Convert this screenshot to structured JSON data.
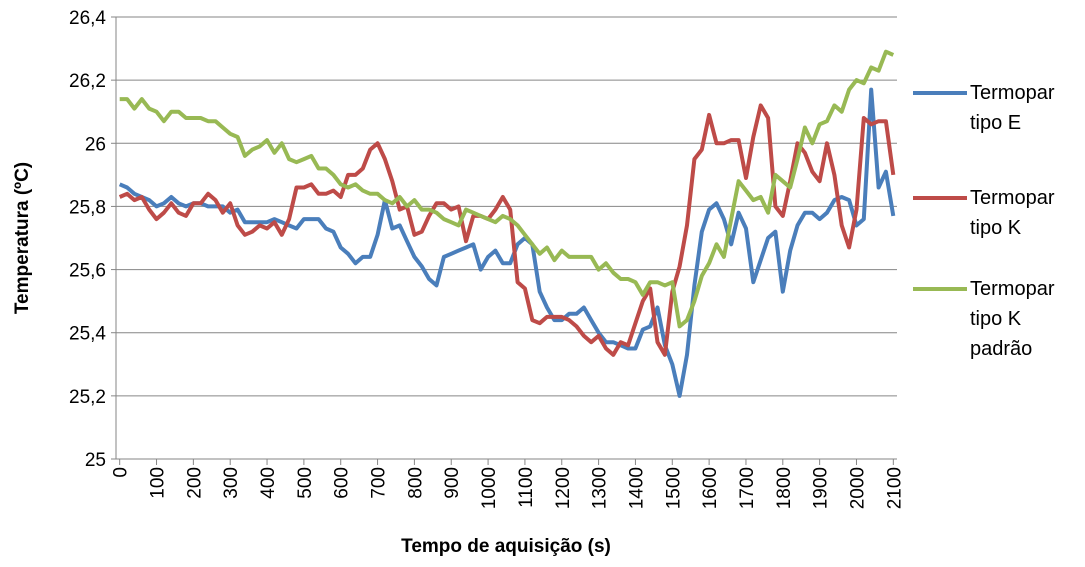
{
  "chart_data": {
    "type": "line",
    "y_label": "Temperatura (ºC)",
    "x_label": "Tempo de aquisição (s)",
    "x": [
      0,
      20,
      40,
      60,
      80,
      100,
      120,
      140,
      160,
      180,
      200,
      220,
      240,
      260,
      280,
      300,
      320,
      340,
      360,
      380,
      400,
      420,
      440,
      460,
      480,
      500,
      520,
      540,
      560,
      580,
      600,
      620,
      640,
      660,
      680,
      700,
      720,
      740,
      760,
      780,
      800,
      820,
      840,
      860,
      880,
      900,
      920,
      940,
      960,
      980,
      1000,
      1020,
      1040,
      1060,
      1080,
      1100,
      1120,
      1140,
      1160,
      1180,
      1200,
      1220,
      1240,
      1260,
      1280,
      1300,
      1320,
      1340,
      1360,
      1380,
      1400,
      1420,
      1440,
      1460,
      1480,
      1500,
      1520,
      1540,
      1560,
      1580,
      1600,
      1620,
      1640,
      1660,
      1680,
      1700,
      1720,
      1740,
      1760,
      1780,
      1800,
      1820,
      1840,
      1860,
      1880,
      1900,
      1920,
      1940,
      1960,
      1980,
      2000,
      2020,
      2040,
      2060,
      2080,
      2100
    ],
    "series": [
      {
        "name": "Termopar tipo E",
        "color": "#4a7ebb",
        "values": [
          25.87,
          25.86,
          25.84,
          25.83,
          25.82,
          25.8,
          25.81,
          25.83,
          25.81,
          25.8,
          25.81,
          25.81,
          25.8,
          25.8,
          25.8,
          25.78,
          25.79,
          25.75,
          25.75,
          25.75,
          25.75,
          25.76,
          25.75,
          25.74,
          25.73,
          25.76,
          25.76,
          25.76,
          25.73,
          25.72,
          25.67,
          25.65,
          25.62,
          25.64,
          25.64,
          25.71,
          25.82,
          25.73,
          25.74,
          25.69,
          25.64,
          25.61,
          25.57,
          25.55,
          25.64,
          25.65,
          25.66,
          25.67,
          25.68,
          25.6,
          25.64,
          25.66,
          25.62,
          25.62,
          25.68,
          25.7,
          25.68,
          25.53,
          25.48,
          25.44,
          25.44,
          25.46,
          25.46,
          25.48,
          25.44,
          25.4,
          25.37,
          25.37,
          25.36,
          25.35,
          25.35,
          25.41,
          25.42,
          25.48,
          25.36,
          25.3,
          25.2,
          25.33,
          25.55,
          25.72,
          25.79,
          25.81,
          25.76,
          25.68,
          25.78,
          25.73,
          25.56,
          25.63,
          25.7,
          25.72,
          25.53,
          25.66,
          25.74,
          25.78,
          25.78,
          25.76,
          25.78,
          25.82,
          25.83,
          25.82,
          25.74,
          25.76,
          26.17,
          25.86,
          25.91,
          25.77
        ]
      },
      {
        "name": "Termopar tipo K",
        "color": "#be4b48",
        "values": [
          25.83,
          25.84,
          25.82,
          25.83,
          25.79,
          25.76,
          25.78,
          25.81,
          25.78,
          25.77,
          25.81,
          25.81,
          25.84,
          25.82,
          25.78,
          25.81,
          25.74,
          25.71,
          25.72,
          25.74,
          25.73,
          25.75,
          25.71,
          25.76,
          25.86,
          25.86,
          25.87,
          25.84,
          25.84,
          25.85,
          25.83,
          25.9,
          25.9,
          25.92,
          25.98,
          26.0,
          25.95,
          25.88,
          25.79,
          25.8,
          25.71,
          25.72,
          25.77,
          25.81,
          25.81,
          25.79,
          25.8,
          25.69,
          25.77,
          25.77,
          25.76,
          25.79,
          25.83,
          25.79,
          25.56,
          25.54,
          25.44,
          25.43,
          25.45,
          25.45,
          25.45,
          25.44,
          25.42,
          25.39,
          25.37,
          25.39,
          25.35,
          25.33,
          25.37,
          25.36,
          25.43,
          25.5,
          25.54,
          25.37,
          25.33,
          25.53,
          25.61,
          25.74,
          25.95,
          25.98,
          26.09,
          26.0,
          26.0,
          26.01,
          26.01,
          25.89,
          26.02,
          26.12,
          26.08,
          25.8,
          25.77,
          25.88,
          26.0,
          25.97,
          25.91,
          25.88,
          26.0,
          25.9,
          25.74,
          25.67,
          25.79,
          26.08,
          26.06,
          26.07,
          26.07,
          25.9
        ]
      },
      {
        "name": "Termopar tipo K padrão",
        "color": "#98b954",
        "values": [
          26.14,
          26.14,
          26.11,
          26.14,
          26.11,
          26.1,
          26.07,
          26.1,
          26.1,
          26.08,
          26.08,
          26.08,
          26.07,
          26.07,
          26.05,
          26.03,
          26.02,
          25.96,
          25.98,
          25.99,
          26.01,
          25.97,
          26.0,
          25.95,
          25.94,
          25.95,
          25.96,
          25.92,
          25.92,
          25.9,
          25.87,
          25.86,
          25.87,
          25.85,
          25.84,
          25.84,
          25.82,
          25.81,
          25.83,
          25.8,
          25.82,
          25.79,
          25.79,
          25.78,
          25.76,
          25.75,
          25.74,
          25.79,
          25.78,
          25.77,
          25.76,
          25.75,
          25.77,
          25.76,
          25.74,
          25.71,
          25.68,
          25.65,
          25.67,
          25.63,
          25.66,
          25.64,
          25.64,
          25.64,
          25.64,
          25.6,
          25.62,
          25.59,
          25.57,
          25.57,
          25.56,
          25.52,
          25.56,
          25.56,
          25.55,
          25.56,
          25.42,
          25.44,
          25.5,
          25.58,
          25.62,
          25.68,
          25.64,
          25.76,
          25.88,
          25.85,
          25.82,
          25.83,
          25.78,
          25.9,
          25.88,
          25.86,
          25.95,
          26.05,
          26.0,
          26.06,
          26.07,
          26.12,
          26.1,
          26.17,
          26.2,
          26.19,
          26.24,
          26.23,
          26.29,
          26.28
        ]
      }
    ],
    "xlim": [
      -10,
      2110
    ],
    "xticks": [
      0,
      100,
      200,
      300,
      400,
      500,
      600,
      700,
      800,
      900,
      1000,
      1100,
      1200,
      1300,
      1400,
      1500,
      1600,
      1700,
      1800,
      1900,
      2000,
      2100
    ],
    "ylim": [
      25,
      26.4
    ],
    "yticks": [
      25,
      {
        "value": 25.2,
        "label": "25,2"
      },
      {
        "value": 25.4,
        "label": "25,4"
      },
      {
        "value": 25.6,
        "label": "25,6"
      },
      {
        "value": 25.8,
        "label": "25,8"
      },
      26,
      {
        "value": 26.2,
        "label": "26,2"
      },
      {
        "value": 26.4,
        "label": "26,4"
      }
    ],
    "grid": true,
    "legend": "right"
  }
}
